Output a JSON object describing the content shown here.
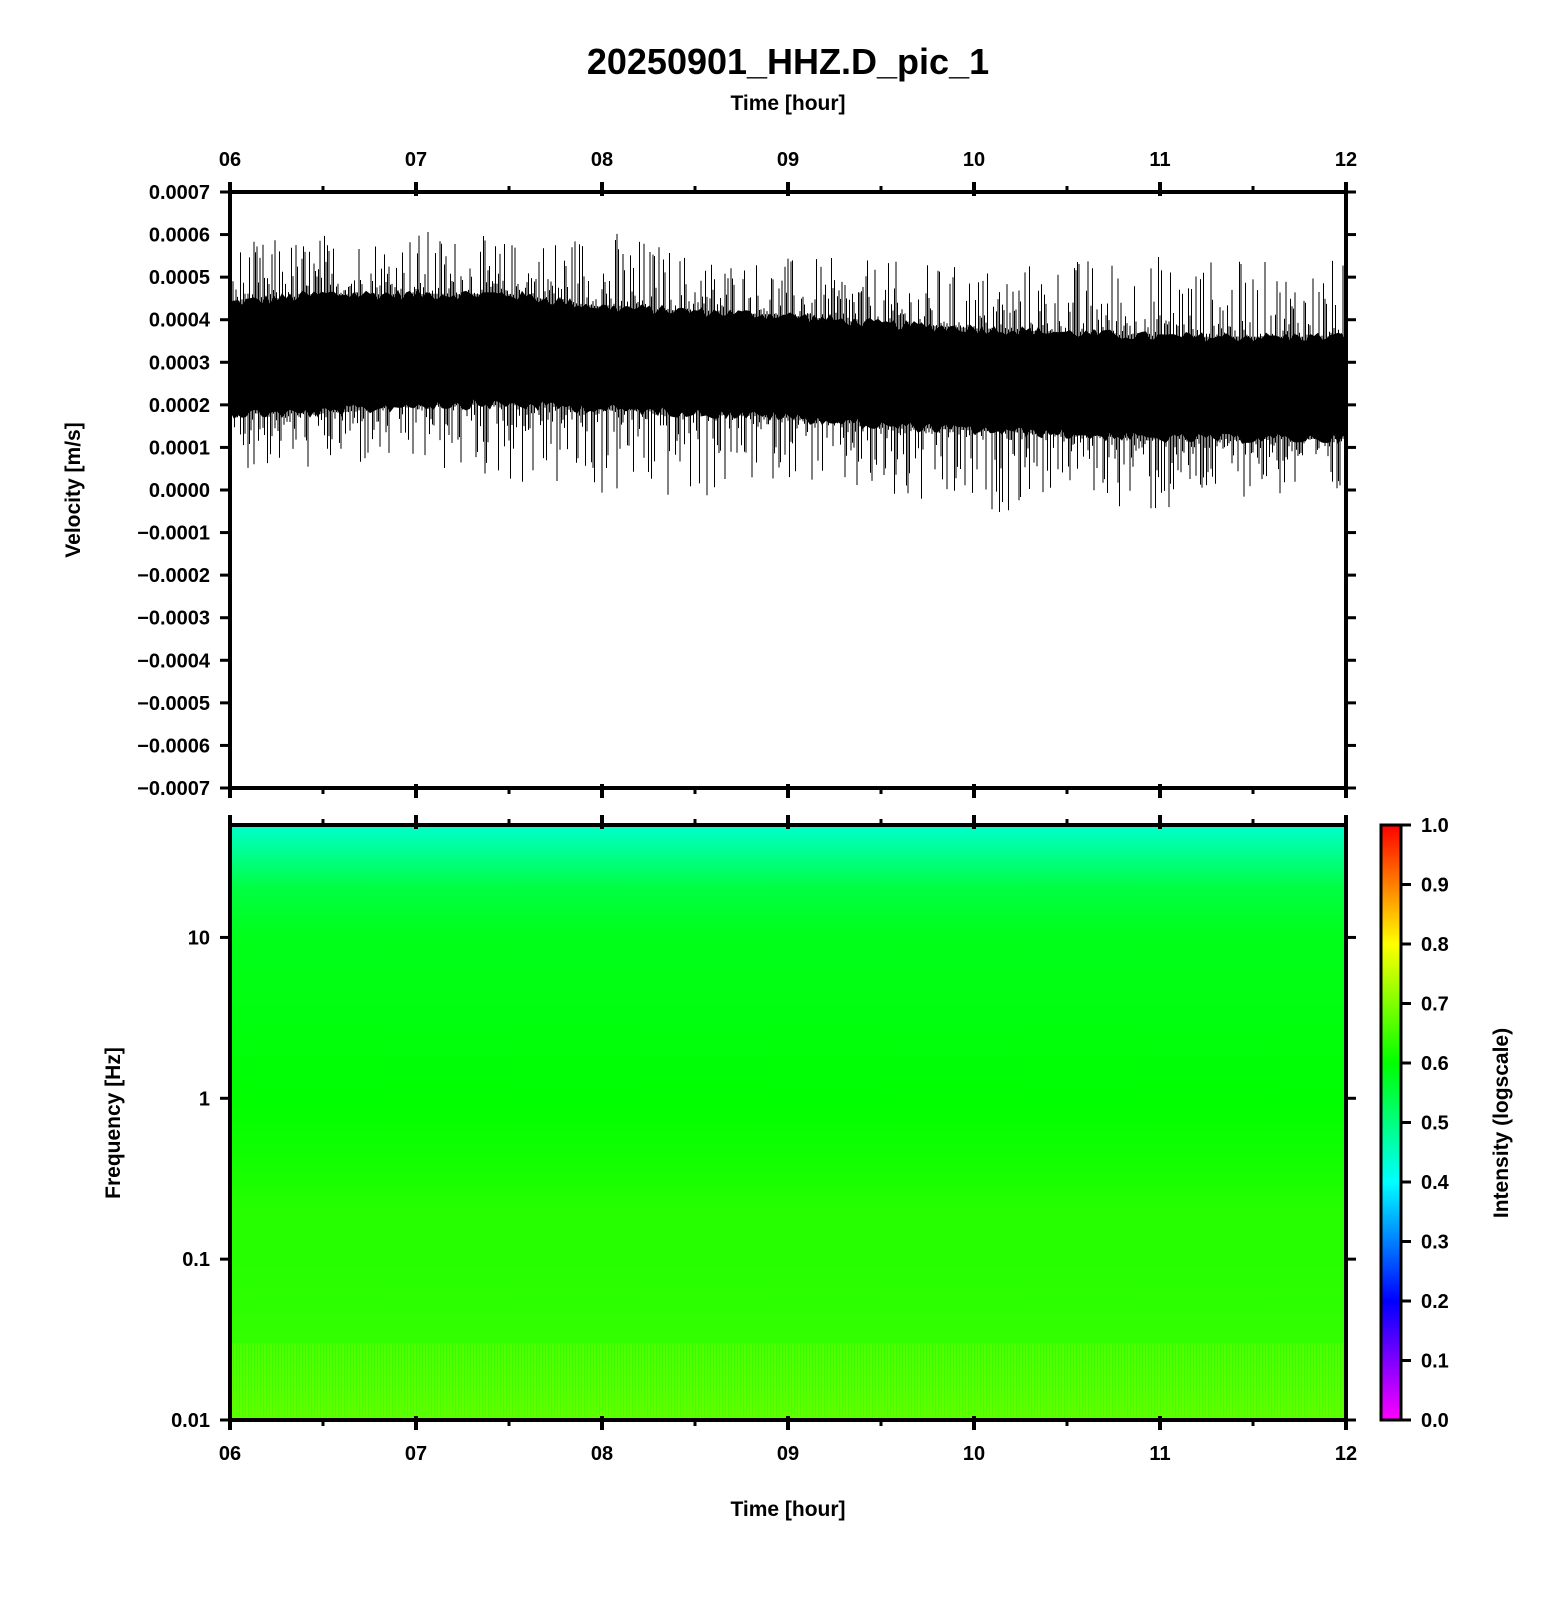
{
  "title": "20250901_HHZ.D_pic_1",
  "top_xlabel": "Time [hour]",
  "bottom_xlabel": "Time [hour]",
  "chart_data": [
    {
      "type": "line",
      "name": "waveform",
      "ylabel": "Velocity [m/s]",
      "xlabel": "Time [hour]",
      "xlim": [
        6,
        12
      ],
      "ylim": [
        -0.0007,
        0.0007
      ],
      "x_ticks": [
        "06",
        "07",
        "08",
        "09",
        "10",
        "11",
        "12"
      ],
      "y_ticks": [
        "0.0007",
        "0.0006",
        "0.0005",
        "0.0004",
        "0.0003",
        "0.0002",
        "0.0001",
        "0.0000",
        "−0.0001",
        "−0.0002",
        "−0.0003",
        "−0.0004",
        "−0.0005",
        "−0.0006",
        "−0.0007"
      ],
      "envelope": {
        "x": [
          6.0,
          6.5,
          7.0,
          7.5,
          8.0,
          8.5,
          9.0,
          9.5,
          10.0,
          10.5,
          11.0,
          11.5,
          12.0
        ],
        "center": [
          0.00031,
          0.00032,
          0.00033,
          0.00033,
          0.00031,
          0.0003,
          0.00029,
          0.00027,
          0.00026,
          0.00025,
          0.00024,
          0.00024,
          0.00024
        ],
        "dense_half_width": [
          0.00013,
          0.00014,
          0.00013,
          0.00013,
          0.00012,
          0.00012,
          0.00012,
          0.00012,
          0.00012,
          0.00012,
          0.00012,
          0.00012,
          0.00012
        ],
        "spike_max": [
          0.00058,
          0.00061,
          0.00062,
          0.00059,
          0.00063,
          0.00056,
          0.00055,
          0.00054,
          0.00053,
          0.00055,
          0.00056,
          0.00054,
          0.00055
        ],
        "spike_min": [
          5e-05,
          4e-05,
          4e-05,
          1e-05,
          -3e-05,
          -4e-05,
          3e-05,
          -6e-05,
          -8e-05,
          0.0,
          -8e-05,
          -1e-05,
          -6e-05
        ]
      },
      "line_color": "#000000"
    },
    {
      "type": "heatmap",
      "name": "spectrogram",
      "ylabel": "Frequency [Hz]",
      "xlabel": "Time [hour]",
      "xlim": [
        6,
        12
      ],
      "y_scale": "log",
      "ylim": [
        0.01,
        50
      ],
      "x_ticks": [
        "06",
        "07",
        "08",
        "09",
        "10",
        "11",
        "12"
      ],
      "y_ticks": [
        "10",
        "1",
        "0.1",
        "0.01"
      ],
      "intensity_by_frequency": {
        "frequency_hz": [
          50,
          20,
          10,
          3,
          1,
          0.5,
          0.3,
          0.2,
          0.1,
          0.03,
          0.01
        ],
        "intensity": [
          0.44,
          0.55,
          0.58,
          0.59,
          0.6,
          0.61,
          0.62,
          0.63,
          0.63,
          0.64,
          0.66
        ]
      },
      "colorbar": {
        "label": "Intensity (logscale)",
        "range": [
          0.0,
          1.0
        ],
        "ticks": [
          "1.0",
          "0.9",
          "0.8",
          "0.7",
          "0.6",
          "0.5",
          "0.4",
          "0.3",
          "0.2",
          "0.1",
          "0.0"
        ],
        "colors": [
          "#ff00ff",
          "#0000ff",
          "#00ffff",
          "#00ff00",
          "#ffff00",
          "#ff0000"
        ]
      }
    }
  ]
}
